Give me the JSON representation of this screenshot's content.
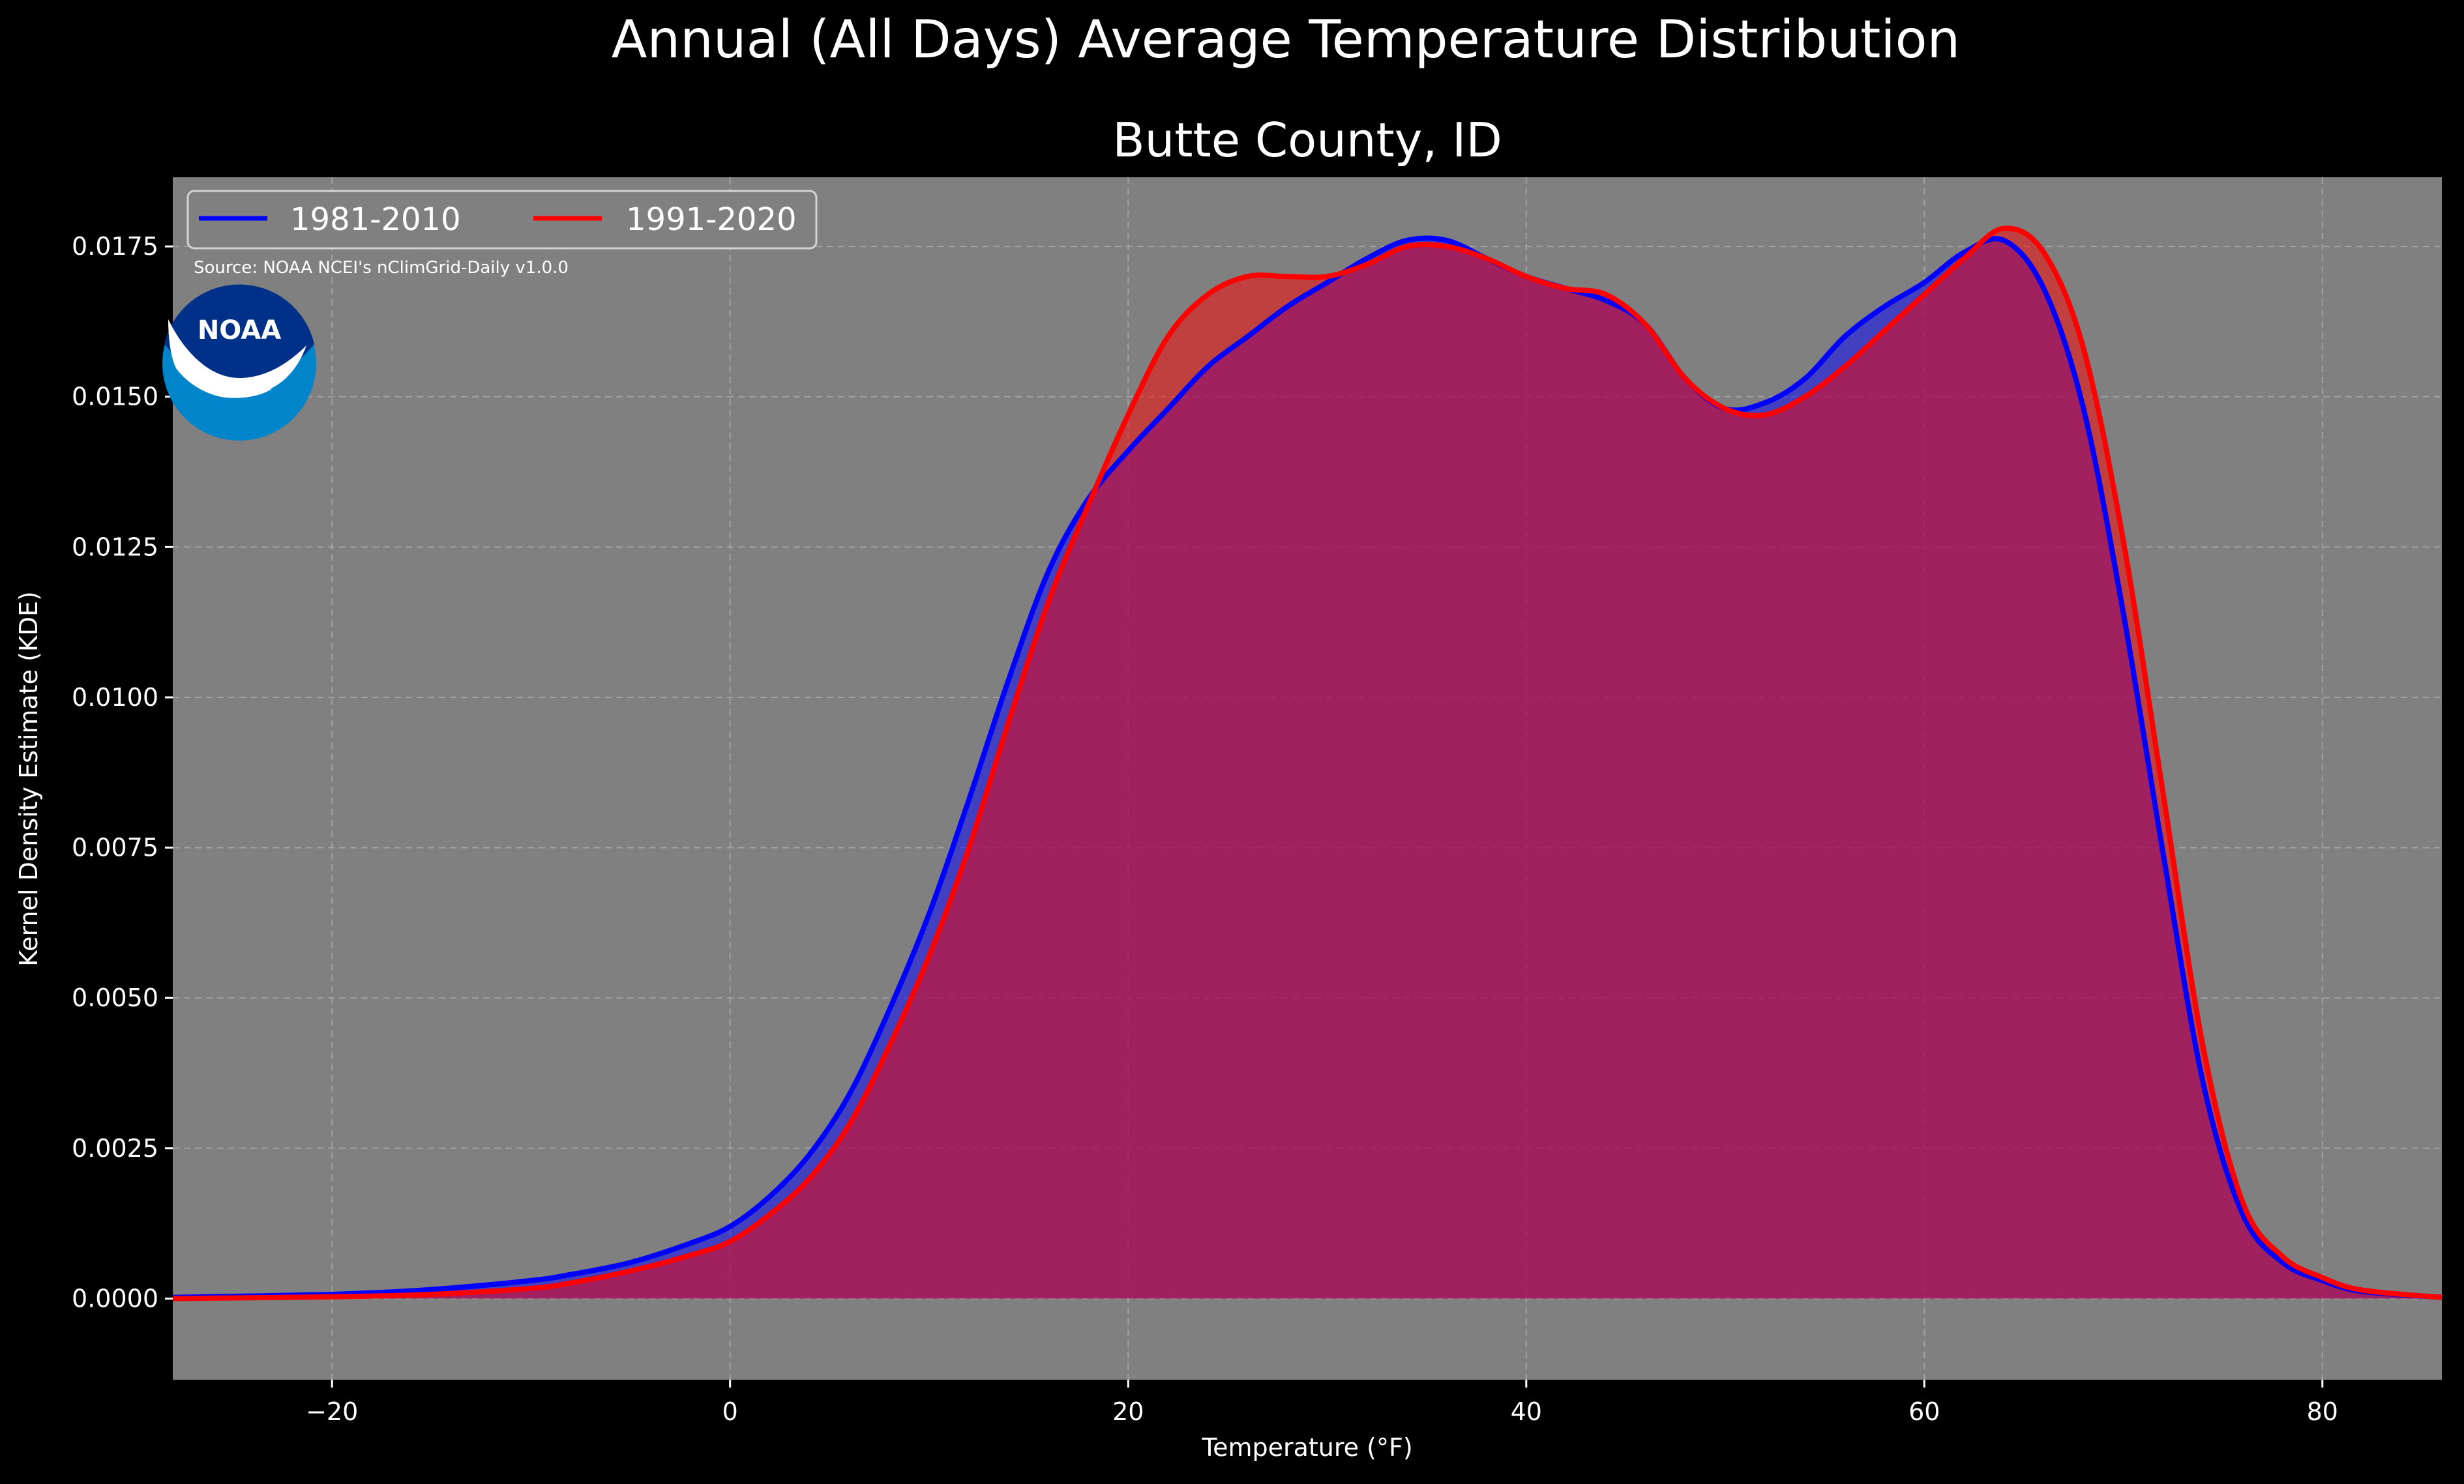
{
  "figure": {
    "suptitle": "Annual (All Days) Average Temperature Distribution",
    "title": "Butte County, ID",
    "source_note": "Source: NOAA NCEI's nClimGrid-Daily v1.0.0",
    "logo_text": "NOAA"
  },
  "colors": {
    "background": "#000000",
    "plot_background": "#808080",
    "series_1981_2010": "#0000ff",
    "series_1991_2020": "#ff0000",
    "overlap_fill": "#9e1f5c",
    "noaa_blue_dark": "#003087",
    "noaa_blue_light": "#0085ca"
  },
  "chart_data": {
    "type": "area",
    "xlabel": "Temperature (°F)",
    "ylabel": "Kernel Density Estimate (KDE)",
    "xlim": [
      -28,
      86
    ],
    "ylim": [
      -0.00135,
      0.01865
    ],
    "xticks": [
      -20,
      0,
      20,
      40,
      60,
      80
    ],
    "xtick_labels": [
      "−20",
      "0",
      "20",
      "40",
      "60",
      "80"
    ],
    "yticks": [
      0,
      0.0025,
      0.005,
      0.0075,
      0.01,
      0.0125,
      0.015,
      0.0175
    ],
    "ytick_labels": [
      "0.0000",
      "0.0025",
      "0.0050",
      "0.0075",
      "0.0100",
      "0.0125",
      "0.0150",
      "0.0175"
    ],
    "grid": true,
    "legend_location": "upper-left",
    "series": [
      {
        "name": "1981-2010",
        "color": "#0000ff",
        "points": [
          [
            -28,
            2e-05
          ],
          [
            -20,
            7e-05
          ],
          [
            -15,
            0.00015
          ],
          [
            -10,
            0.0003
          ],
          [
            -8,
            0.0004
          ],
          [
            -5,
            0.0006
          ],
          [
            -2,
            0.00092
          ],
          [
            0,
            0.0012
          ],
          [
            2,
            0.0017
          ],
          [
            4,
            0.0024
          ],
          [
            6,
            0.0034
          ],
          [
            8,
            0.0048
          ],
          [
            10,
            0.0064
          ],
          [
            12,
            0.0083
          ],
          [
            14,
            0.0103
          ],
          [
            16,
            0.0121
          ],
          [
            18,
            0.0133
          ],
          [
            20,
            0.0141
          ],
          [
            22,
            0.0148
          ],
          [
            24,
            0.0155
          ],
          [
            26,
            0.016
          ],
          [
            28,
            0.0165
          ],
          [
            30,
            0.0169
          ],
          [
            32,
            0.0173
          ],
          [
            34,
            0.0176
          ],
          [
            36,
            0.0176
          ],
          [
            38,
            0.0173
          ],
          [
            40,
            0.017
          ],
          [
            42,
            0.0168
          ],
          [
            44,
            0.0166
          ],
          [
            46,
            0.0162
          ],
          [
            48,
            0.0153
          ],
          [
            50,
            0.0148
          ],
          [
            52,
            0.0149
          ],
          [
            54,
            0.0153
          ],
          [
            56,
            0.016
          ],
          [
            58,
            0.0165
          ],
          [
            60,
            0.0169
          ],
          [
            62,
            0.0174
          ],
          [
            64,
            0.0176
          ],
          [
            66,
            0.0168
          ],
          [
            68,
            0.0148
          ],
          [
            70,
            0.0114
          ],
          [
            72,
            0.0074
          ],
          [
            74,
            0.0036
          ],
          [
            76,
            0.0014
          ],
          [
            78,
            0.0006
          ],
          [
            80,
            0.0003
          ],
          [
            82,
            0.00012
          ],
          [
            86,
            2e-05
          ]
        ]
      },
      {
        "name": "1991-2020",
        "color": "#ff0000",
        "points": [
          [
            -28,
            0.0
          ],
          [
            -20,
            3e-05
          ],
          [
            -15,
            7e-05
          ],
          [
            -10,
            0.00017
          ],
          [
            -8,
            0.00026
          ],
          [
            -5,
            0.00046
          ],
          [
            -2,
            0.00072
          ],
          [
            0,
            0.00095
          ],
          [
            2,
            0.0014
          ],
          [
            4,
            0.002
          ],
          [
            6,
            0.0029
          ],
          [
            8,
            0.0042
          ],
          [
            10,
            0.0057
          ],
          [
            12,
            0.0075
          ],
          [
            14,
            0.0096
          ],
          [
            16,
            0.0116
          ],
          [
            18,
            0.0132
          ],
          [
            20,
            0.0147
          ],
          [
            22,
            0.016
          ],
          [
            24,
            0.0167
          ],
          [
            26,
            0.017
          ],
          [
            28,
            0.017
          ],
          [
            30,
            0.017
          ],
          [
            32,
            0.0172
          ],
          [
            34,
            0.0175
          ],
          [
            36,
            0.0175
          ],
          [
            38,
            0.0173
          ],
          [
            40,
            0.017
          ],
          [
            42,
            0.0168
          ],
          [
            44,
            0.0167
          ],
          [
            46,
            0.0162
          ],
          [
            48,
            0.0153
          ],
          [
            50,
            0.0148
          ],
          [
            52,
            0.0147
          ],
          [
            54,
            0.015
          ],
          [
            56,
            0.0155
          ],
          [
            58,
            0.0161
          ],
          [
            60,
            0.0167
          ],
          [
            62,
            0.0173
          ],
          [
            64,
            0.0178
          ],
          [
            66,
            0.0174
          ],
          [
            68,
            0.0158
          ],
          [
            70,
            0.0126
          ],
          [
            72,
            0.0084
          ],
          [
            74,
            0.0042
          ],
          [
            76,
            0.0016
          ],
          [
            78,
            0.0007
          ],
          [
            80,
            0.00035
          ],
          [
            82,
            0.00014
          ],
          [
            86,
            2e-05
          ]
        ]
      }
    ]
  }
}
